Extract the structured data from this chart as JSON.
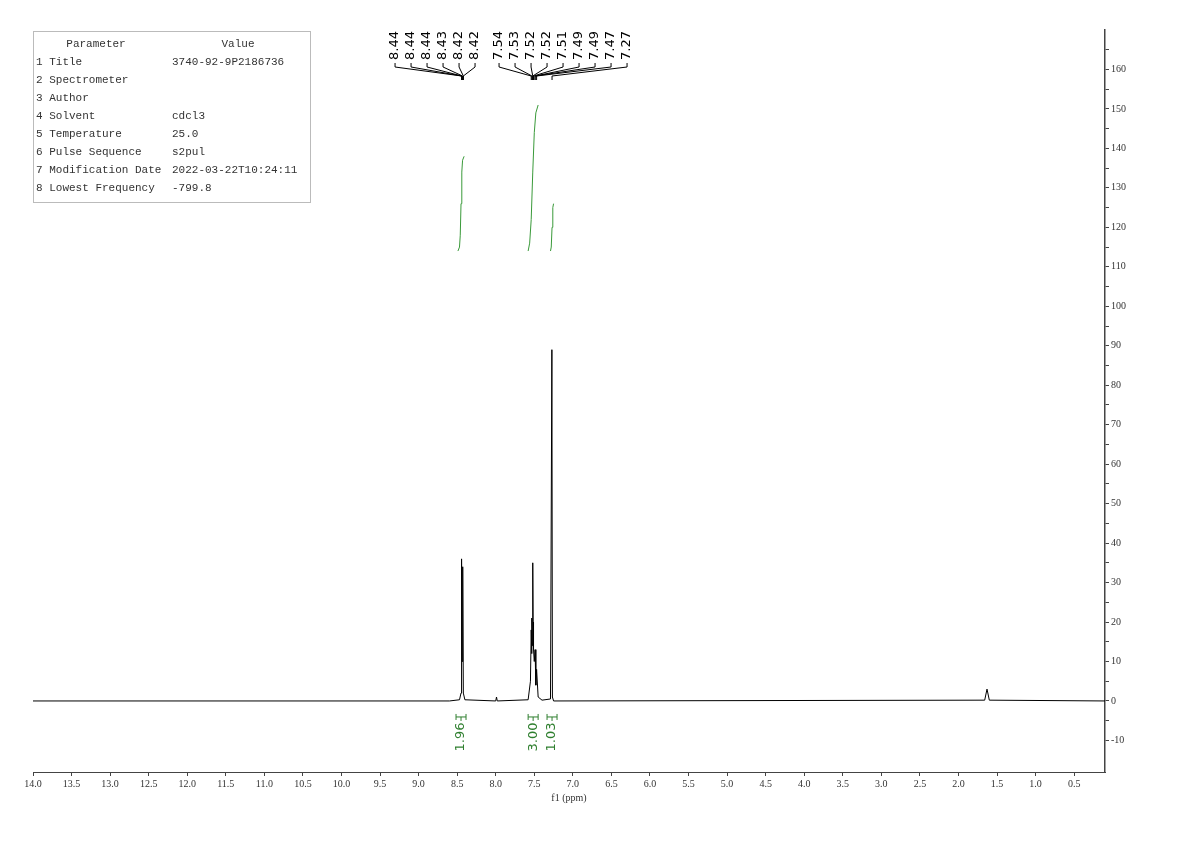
{
  "chart_data": [
    {
      "type": "line",
      "xlabel": "f1 (ppm)",
      "marker": "none",
      "grid": false,
      "legend": false,
      "xlim": [
        14.0,
        0.1
      ],
      "xticks": [
        {
          "value": 14,
          "label": "14.0"
        },
        13.5,
        {
          "value": 13,
          "label": "13.0"
        },
        12.5,
        {
          "value": 12,
          "label": "12.0"
        },
        11.5,
        {
          "value": 11,
          "label": "11.0"
        },
        10.5,
        {
          "value": 10,
          "label": "10.0"
        },
        9.5,
        {
          "value": 9,
          "label": "9.0"
        },
        8.5,
        {
          "value": 8,
          "label": "8.0"
        },
        7.5,
        {
          "value": 7,
          "label": "7.0"
        },
        6.5,
        {
          "value": 6,
          "label": "6.0"
        },
        5.5,
        {
          "value": 5,
          "label": "5.0"
        },
        4.5,
        {
          "value": 4,
          "label": "4.0"
        },
        3.5,
        {
          "value": 3,
          "label": "3.0"
        },
        2.5,
        {
          "value": 2,
          "label": "2.0"
        },
        1.5,
        {
          "value": 1,
          "label": "1.0"
        },
        0.5
      ],
      "ylim": [
        -18,
        170
      ],
      "yticks": [
        -10,
        {
          "value": -5,
          "label": null
        },
        0,
        {
          "value": 5,
          "label": null
        },
        10,
        {
          "value": 15,
          "label": null
        },
        20,
        {
          "value": 25,
          "label": null
        },
        30,
        {
          "value": 35,
          "label": null
        },
        40,
        {
          "value": 45,
          "label": null
        },
        50,
        {
          "value": 55,
          "label": null
        },
        60,
        {
          "value": 65,
          "label": null
        },
        70,
        {
          "value": 75,
          "label": null
        },
        80,
        {
          "value": 85,
          "label": null
        },
        90,
        {
          "value": 95,
          "label": null
        },
        100,
        {
          "value": 105,
          "label": null
        },
        110,
        {
          "value": 115,
          "label": null
        },
        120,
        {
          "value": 125,
          "label": null
        },
        130,
        {
          "value": 135,
          "label": null
        },
        140,
        {
          "value": 145,
          "label": null
        },
        150,
        {
          "value": 155,
          "label": null
        },
        160,
        {
          "value": 165,
          "label": null
        }
      ],
      "series": [
        {
          "color": "#000000",
          "x": [
            14.0,
            8.6,
            8.47,
            8.45,
            8.443,
            8.436,
            8.428,
            8.42,
            8.4,
            8.0,
            7.99,
            7.98,
            7.58,
            7.55,
            7.54,
            7.535,
            7.53,
            7.525,
            7.52,
            7.515,
            7.51,
            7.5,
            7.49,
            7.48,
            7.47,
            7.45,
            7.4,
            7.29,
            7.272,
            7.265,
            7.25,
            1.66,
            1.63,
            1.6,
            0.1
          ],
          "values": [
            0,
            0,
            0.3,
            2,
            36,
            10,
            34,
            2,
            0.3,
            0,
            1,
            0,
            0.3,
            5,
            18,
            12,
            21,
            14,
            35,
            20,
            13,
            10,
            13,
            4,
            8,
            1,
            0.2,
            0.5,
            89,
            1,
            0,
            0.2,
            3,
            0.2,
            0
          ]
        },
        {
          "color": "#3a9a3a",
          "x": [
            8.49,
            8.47,
            8.46,
            8.45,
            8.44,
            8.43,
            8.41
          ],
          "values": [
            114,
            115,
            118,
            126,
            134,
            137,
            138
          ]
        },
        {
          "color": "#3a9a3a",
          "x": [
            7.58,
            7.56,
            7.54,
            7.52,
            7.5,
            7.48,
            7.45
          ],
          "values": [
            114,
            116,
            122,
            134,
            144,
            149,
            151
          ]
        },
        {
          "color": "#3a9a3a",
          "x": [
            7.29,
            7.28,
            7.27,
            7.26,
            7.25
          ],
          "values": [
            114,
            115,
            120,
            125,
            126
          ]
        }
      ],
      "annotations": [
        {
          "text": "8.44",
          "x": 8.44
        },
        {
          "text": "8.44",
          "x": 8.44
        },
        {
          "text": "8.44",
          "x": 8.44
        },
        {
          "text": "8.43",
          "x": 8.43
        },
        {
          "text": "8.42",
          "x": 8.42
        },
        {
          "text": "8.42",
          "x": 8.42
        },
        {
          "text": "7.54",
          "x": 7.54
        },
        {
          "text": "7.53",
          "x": 7.53
        },
        {
          "text": "7.52",
          "x": 7.52
        },
        {
          "text": "7.52",
          "x": 7.52
        },
        {
          "text": "7.51",
          "x": 7.51
        },
        {
          "text": "7.49",
          "x": 7.49
        },
        {
          "text": "7.49",
          "x": 7.49
        },
        {
          "text": "7.47",
          "x": 7.47
        },
        {
          "text": "7.27",
          "x": 7.27
        },
        "1.96",
        "3.00",
        "1.03"
      ]
    },
    {
      "type": "other",
      "annotations": [
        "Parameter\tValue",
        "1 Title\t3740-92-9P2186736",
        "2 Spectrometer",
        "3 Author",
        "4 Solvent\tcdcl3",
        "5 Temperature\t25.0",
        "6 Pulse Sequence\ts2pul",
        "7 Modification Date\t2022-03-22T10:24:11",
        "8 Lowest Frequency\t-799.8"
      ]
    }
  ]
}
